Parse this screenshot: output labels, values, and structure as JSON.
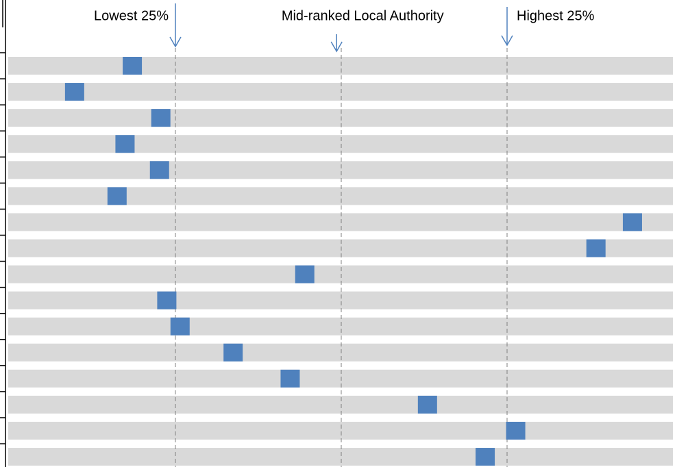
{
  "chart_data": {
    "type": "rank",
    "categories": [
      null,
      null,
      null,
      null,
      null,
      null,
      null,
      null,
      null,
      null,
      null,
      null,
      null,
      null,
      null,
      null
    ],
    "values": [
      18.5,
      9.8,
      22.8,
      17.4,
      22.6,
      16.2,
      93.9,
      88.4,
      44.5,
      23.7,
      25.7,
      33.7,
      42.3,
      63.0,
      76.3,
      71.7
    ],
    "color": "#4f81bd",
    "bar_color": "#d9d9d9",
    "xlim": [
      0,
      100
    ],
    "xticks": [
      25,
      50,
      75
    ],
    "grid": true,
    "annotations": [
      {
        "text": "Lowest 25%",
        "x": 25
      },
      {
        "text": "Mid-ranked Local Authority",
        "x": 49.3
      },
      {
        "text": "Highest 25%",
        "x": 75
      }
    ]
  }
}
